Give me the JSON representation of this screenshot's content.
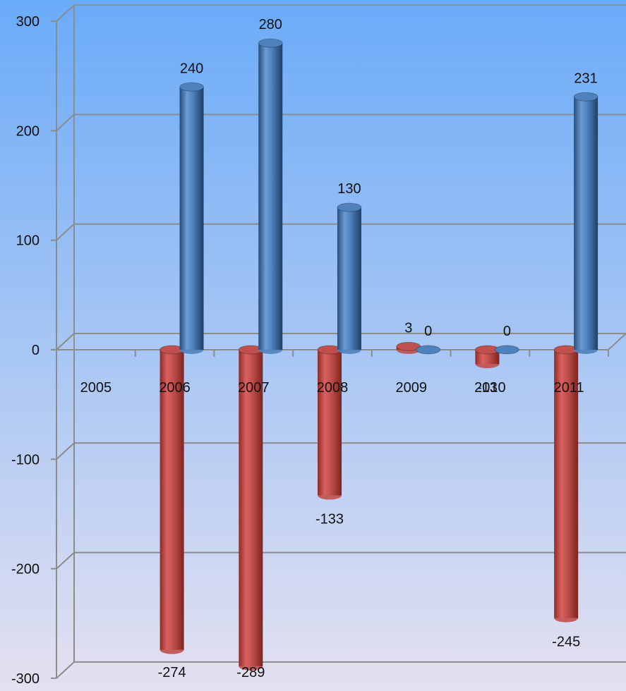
{
  "chart_data": {
    "type": "bar",
    "title": "",
    "xlabel": "",
    "ylabel": "",
    "categories": [
      "2005",
      "2006",
      "2007",
      "2008",
      "2009",
      "2010",
      "2011"
    ],
    "series": [
      {
        "values": [
          null,
          -274,
          -289,
          -133,
          3,
          -13,
          -245
        ],
        "color": "#c0504d"
      },
      {
        "values": [
          null,
          240,
          280,
          130,
          0,
          0,
          231
        ],
        "color": "#4f81bd"
      }
    ],
    "ylim": [
      -300,
      300
    ],
    "yticks": [
      -300,
      -200,
      -100,
      0,
      100,
      200,
      300
    ],
    "grid": true,
    "legend": "none",
    "data_labels": true
  },
  "colors": {
    "background_top": "#6aabf8",
    "background_bottom": "#e4e1f0",
    "gridline": "#8c8c8c"
  }
}
